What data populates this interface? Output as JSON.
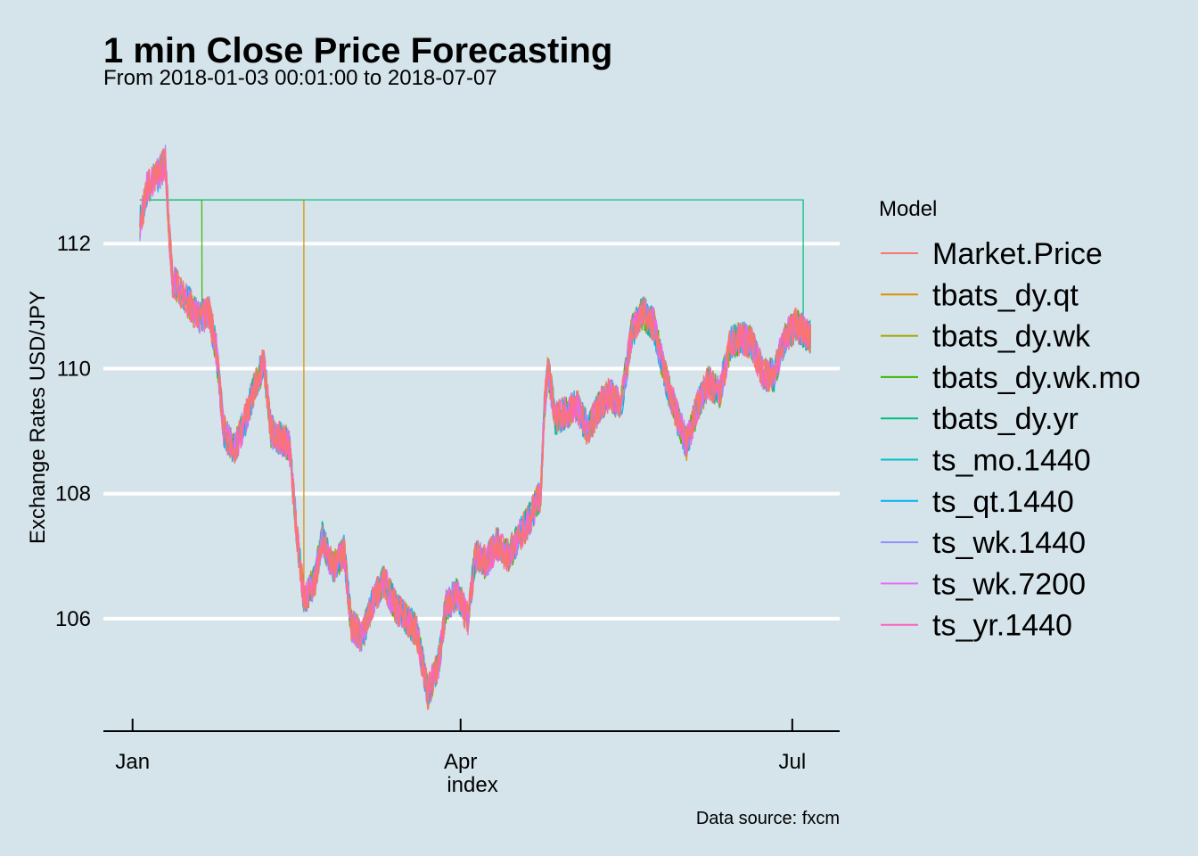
{
  "chart_data": {
    "type": "line",
    "title": "1 min Close Price Forecasting",
    "subtitle": "From 2018-01-03 00:01:00 to 2018-07-07",
    "caption": "Data source: fxcm",
    "xlabel": "index",
    "ylabel": "Exchange Rates USD/JPY",
    "x_ticks": [
      {
        "label": "Jan",
        "date": "2018-01-01"
      },
      {
        "label": "Apr",
        "date": "2018-04-01"
      },
      {
        "label": "Jul",
        "date": "2018-07-01"
      }
    ],
    "y_ticks": [
      106,
      108,
      110,
      112
    ],
    "xlim": [
      "2017-12-24",
      "2018-07-14"
    ],
    "ylim": [
      104.2,
      113.9
    ],
    "grid": "horizontal major only",
    "legend": {
      "title": "Model",
      "position": "right"
    },
    "series": [
      {
        "name": "Market.Price",
        "color": "#F8766D"
      },
      {
        "name": "tbats_dy.qt",
        "color": "#D89000"
      },
      {
        "name": "tbats_dy.wk",
        "color": "#A3A500"
      },
      {
        "name": "tbats_dy.wk.mo",
        "color": "#39B600"
      },
      {
        "name": "tbats_dy.yr",
        "color": "#00BF7D"
      },
      {
        "name": "ts_mo.1440",
        "color": "#00BFC4"
      },
      {
        "name": "ts_qt.1440",
        "color": "#00B0F6"
      },
      {
        "name": "ts_wk.1440",
        "color": "#9590FF"
      },
      {
        "name": "ts_wk.7200",
        "color": "#E76BF3"
      },
      {
        "name": "ts_yr.1440",
        "color": "#FF62BC"
      }
    ],
    "price_path": [
      [
        "2018-01-03",
        112.3
      ],
      [
        "2018-01-05",
        112.9
      ],
      [
        "2018-01-08",
        113.1
      ],
      [
        "2018-01-10",
        113.3
      ],
      [
        "2018-01-11",
        112.2
      ],
      [
        "2018-01-12",
        111.4
      ],
      [
        "2018-01-16",
        111.1
      ],
      [
        "2018-01-19",
        110.8
      ],
      [
        "2018-01-22",
        110.9
      ],
      [
        "2018-01-24",
        110.3
      ],
      [
        "2018-01-26",
        109.0
      ],
      [
        "2018-01-29",
        108.7
      ],
      [
        "2018-02-01",
        109.2
      ],
      [
        "2018-02-03",
        109.6
      ],
      [
        "2018-02-06",
        110.1
      ],
      [
        "2018-02-08",
        109.0
      ],
      [
        "2018-02-10",
        108.9
      ],
      [
        "2018-02-13",
        108.8
      ],
      [
        "2018-02-15",
        107.4
      ],
      [
        "2018-02-17",
        106.3
      ],
      [
        "2018-02-20",
        106.6
      ],
      [
        "2018-02-22",
        107.3
      ],
      [
        "2018-02-25",
        106.8
      ],
      [
        "2018-02-28",
        107.1
      ],
      [
        "2018-03-02",
        105.9
      ],
      [
        "2018-03-05",
        105.7
      ],
      [
        "2018-03-08",
        106.3
      ],
      [
        "2018-03-11",
        106.6
      ],
      [
        "2018-03-14",
        106.2
      ],
      [
        "2018-03-17",
        106.0
      ],
      [
        "2018-03-20",
        105.8
      ],
      [
        "2018-03-23",
        104.8
      ],
      [
        "2018-03-26",
        105.3
      ],
      [
        "2018-03-28",
        106.2
      ],
      [
        "2018-03-31",
        106.4
      ],
      [
        "2018-04-03",
        106.0
      ],
      [
        "2018-04-05",
        107.0
      ],
      [
        "2018-04-08",
        106.9
      ],
      [
        "2018-04-11",
        107.2
      ],
      [
        "2018-04-14",
        107.0
      ],
      [
        "2018-04-17",
        107.3
      ],
      [
        "2018-04-20",
        107.6
      ],
      [
        "2018-04-23",
        108.0
      ],
      [
        "2018-04-24",
        109.4
      ],
      [
        "2018-04-25",
        110.0
      ],
      [
        "2018-04-27",
        109.2
      ],
      [
        "2018-04-30",
        109.3
      ],
      [
        "2018-05-03",
        109.4
      ],
      [
        "2018-05-06",
        109.0
      ],
      [
        "2018-05-09",
        109.4
      ],
      [
        "2018-05-12",
        109.6
      ],
      [
        "2018-05-15",
        109.4
      ],
      [
        "2018-05-18",
        110.6
      ],
      [
        "2018-05-21",
        110.9
      ],
      [
        "2018-05-24",
        110.7
      ],
      [
        "2018-05-27",
        109.9
      ],
      [
        "2018-05-30",
        109.3
      ],
      [
        "2018-06-02",
        108.8
      ],
      [
        "2018-06-05",
        109.4
      ],
      [
        "2018-06-08",
        109.8
      ],
      [
        "2018-06-11",
        109.6
      ],
      [
        "2018-06-14",
        110.4
      ],
      [
        "2018-06-17",
        110.5
      ],
      [
        "2018-06-20",
        110.4
      ],
      [
        "2018-06-23",
        109.9
      ],
      [
        "2018-06-26",
        109.9
      ],
      [
        "2018-06-29",
        110.5
      ],
      [
        "2018-07-02",
        110.7
      ],
      [
        "2018-07-04",
        110.6
      ],
      [
        "2018-07-06",
        110.5
      ]
    ],
    "forecast_steps": [
      {
        "series": "tbats_dy.qt",
        "level": 112.7,
        "drop_date": "2018-02-17"
      },
      {
        "series": "tbats_dy.wk.mo",
        "level": 112.7,
        "drop_date": "2018-01-20"
      },
      {
        "series": "tbats_dy.yr",
        "level": 112.7,
        "drop_date": "2018-07-04"
      }
    ]
  }
}
